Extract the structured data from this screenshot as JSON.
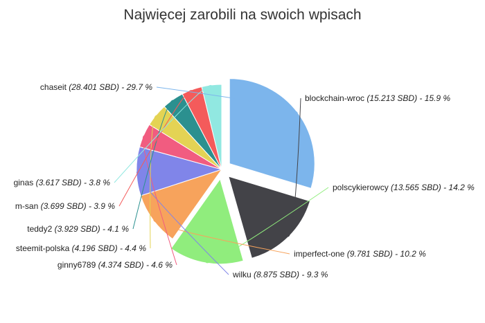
{
  "chart_data": {
    "type": "pie",
    "title": "Najwięcej zarobili na swoich wpisach",
    "unit": "SBD",
    "slices": [
      {
        "name": "chaseit",
        "value": 28.401,
        "percent": "29.7",
        "color": "#7cb5ec",
        "exploded": true
      },
      {
        "name": "blockchain-wroc",
        "value": 15.213,
        "percent": "15.9",
        "color": "#434348",
        "exploded": true
      },
      {
        "name": "polscykierowcy",
        "value": 13.565,
        "percent": "14.2",
        "color": "#90ed7d",
        "exploded": true
      },
      {
        "name": "imperfect-one",
        "value": 9.781,
        "percent": "10.2",
        "color": "#f7a35c",
        "exploded": false
      },
      {
        "name": "wilku",
        "value": 8.875,
        "percent": "9.3",
        "color": "#8085e9",
        "exploded": false
      },
      {
        "name": "ginny6789",
        "value": 4.374,
        "percent": "4.6",
        "color": "#f15c80",
        "exploded": false
      },
      {
        "name": "steemit-polska",
        "value": 4.196,
        "percent": "4.4",
        "color": "#e4d354",
        "exploded": false
      },
      {
        "name": "teddy2",
        "value": 3.929,
        "percent": "4.1",
        "color": "#2b908f",
        "exploded": false
      },
      {
        "name": "m-san",
        "value": 3.699,
        "percent": "3.9",
        "color": "#f45b5b",
        "exploded": false
      },
      {
        "name": "ginas",
        "value": 3.617,
        "percent": "3.8",
        "color": "#91e8e1",
        "exploded": false
      }
    ]
  }
}
